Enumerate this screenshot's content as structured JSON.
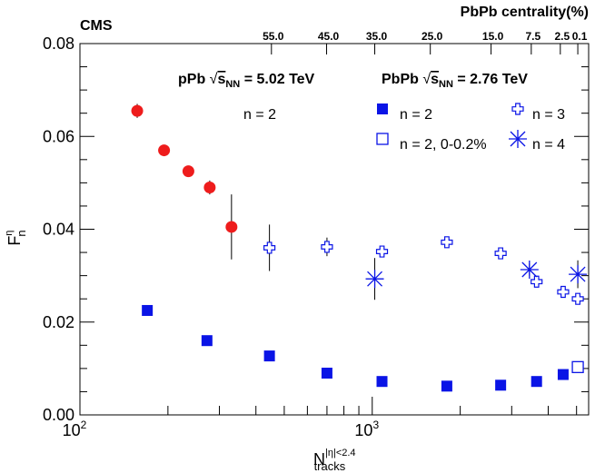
{
  "chart_data": {
    "type": "scatter",
    "experiment_label": "CMS",
    "top_axis_title": "PbPb centrality(%)",
    "top_axis_ticks": [
      {
        "label": "55.0",
        "x": 452
      },
      {
        "label": "45.0",
        "x": 698
      },
      {
        "label": "35.0",
        "x": 1020
      },
      {
        "label": "25.0",
        "x": 1580
      },
      {
        "label": "15.0",
        "x": 2550
      },
      {
        "label": "7.5",
        "x": 3500
      },
      {
        "label": "2.5",
        "x": 4400
      },
      {
        "label": "0.1",
        "x": 5050
      }
    ],
    "xaxis": {
      "label": "N",
      "label_superscript": "|η|<2.4",
      "label_subscript": "tracks",
      "scale": "log",
      "lim": [
        100,
        5500
      ],
      "major_tick_labels": [
        {
          "text": "10",
          "sup": "2",
          "value": 100
        },
        {
          "text": "10",
          "sup": "3",
          "value": 1000
        }
      ]
    },
    "yaxis": {
      "label": "F",
      "label_superscript": "η",
      "label_subscript": "n",
      "lim": [
        0,
        0.08
      ],
      "tick_labels": [
        "0.00",
        "0.02",
        "0.04",
        "0.06",
        "0.08"
      ]
    },
    "legend": {
      "pPb_header": "pPb",
      "PbPb_header": "PbPb",
      "energy_pPb": "= 5.02 TeV",
      "energy_PbPb": "= 2.76 TeV",
      "sqrt_symbol": "√",
      "s_NN_base": "s",
      "s_NN_sub": "NN",
      "entries": {
        "pPb_n2": "n = 2",
        "PbPb_n2": "n = 2",
        "PbPb_n2_ultra": "n = 2, 0-0.2%",
        "PbPb_n3": "n = 3",
        "PbPb_n4": "n = 4"
      }
    },
    "series": [
      {
        "name": "pPb n = 2",
        "marker": "filled-circle",
        "color": "#ee1c1c",
        "points": [
          {
            "x": 157,
            "y": 0.0655,
            "err": 0.0015
          },
          {
            "x": 194,
            "y": 0.057,
            "err": 0.0008
          },
          {
            "x": 235,
            "y": 0.0525,
            "err": 0.0008
          },
          {
            "x": 278,
            "y": 0.049,
            "err": 0.0015
          },
          {
            "x": 330,
            "y": 0.0405,
            "err": 0.007
          }
        ]
      },
      {
        "name": "PbPb n = 2",
        "marker": "filled-square",
        "color": "#0a14e6",
        "points": [
          {
            "x": 170,
            "y": 0.0225
          },
          {
            "x": 272,
            "y": 0.016
          },
          {
            "x": 445,
            "y": 0.0127
          },
          {
            "x": 700,
            "y": 0.009
          },
          {
            "x": 1080,
            "y": 0.0072
          },
          {
            "x": 1800,
            "y": 0.0062
          },
          {
            "x": 2750,
            "y": 0.0064
          },
          {
            "x": 3650,
            "y": 0.0072
          },
          {
            "x": 4500,
            "y": 0.0087
          }
        ]
      },
      {
        "name": "PbPb n = 2, 0-0.2%",
        "marker": "open-square",
        "color": "#0a14e6",
        "points": [
          {
            "x": 5050,
            "y": 0.0103
          }
        ]
      },
      {
        "name": "PbPb n = 3",
        "marker": "open-cross",
        "color": "#0a14e6",
        "points": [
          {
            "x": 445,
            "y": 0.036,
            "err": 0.005
          },
          {
            "x": 700,
            "y": 0.0362,
            "err": 0.002
          },
          {
            "x": 1080,
            "y": 0.0352
          },
          {
            "x": 1800,
            "y": 0.0372
          },
          {
            "x": 2750,
            "y": 0.0348
          },
          {
            "x": 3650,
            "y": 0.0287
          },
          {
            "x": 4500,
            "y": 0.0265
          },
          {
            "x": 5050,
            "y": 0.025
          }
        ]
      },
      {
        "name": "PbPb n = 4",
        "marker": "asterisk",
        "color": "#0a14e6",
        "points": [
          {
            "x": 1020,
            "y": 0.0293,
            "err": 0.0045
          },
          {
            "x": 3450,
            "y": 0.0313,
            "err": 0.0013
          },
          {
            "x": 5050,
            "y": 0.0303,
            "err": 0.003
          }
        ]
      }
    ]
  }
}
